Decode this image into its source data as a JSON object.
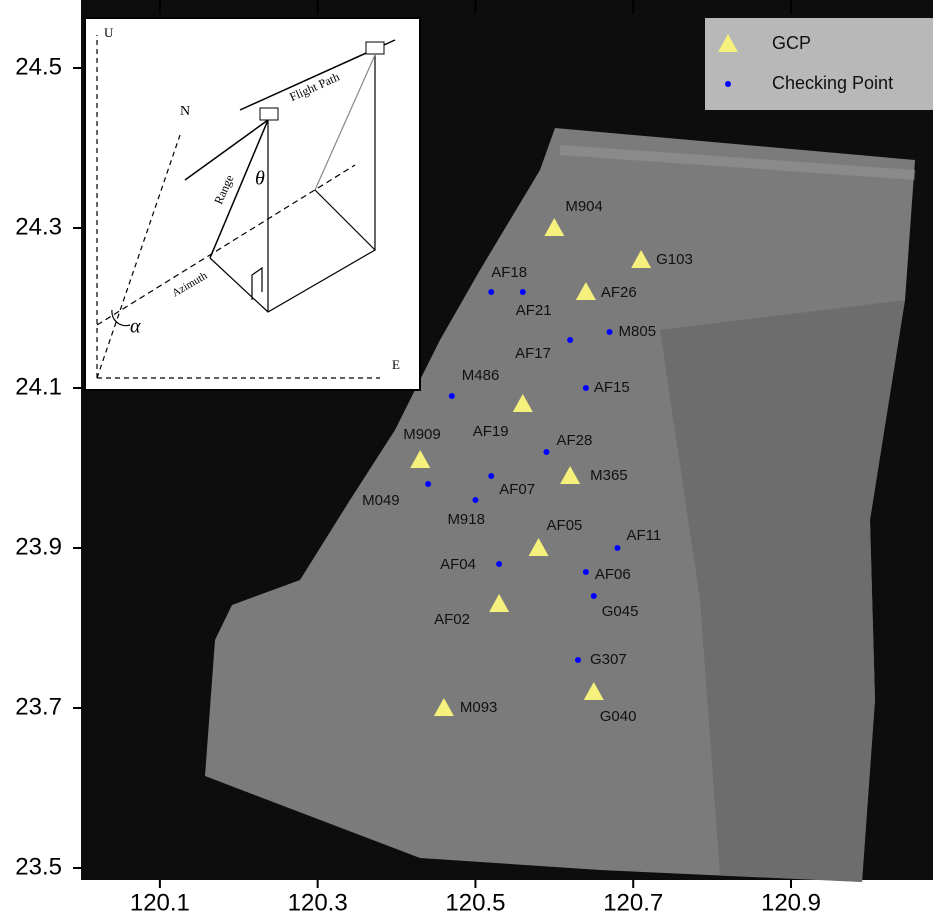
{
  "chart_data": {
    "type": "scatter",
    "xlim": [
      120.0,
      121.08
    ],
    "ylim": [
      23.485,
      24.585
    ],
    "xticks": [
      120.1,
      120.3,
      120.5,
      120.7,
      120.9
    ],
    "yticks": [
      24.5,
      24.3,
      24.1,
      23.9,
      23.7,
      23.5
    ],
    "legend": "top-right",
    "series": [
      {
        "name": "GCP",
        "color": "#f6f07c",
        "marker": "triangle",
        "labels": [
          "M904",
          "G103",
          "AF26",
          "AF19",
          "M909",
          "M365",
          "AF05",
          "AF02",
          "M093",
          "G040"
        ],
        "x": [
          120.6,
          120.71,
          120.64,
          120.56,
          120.43,
          120.62,
          120.58,
          120.53,
          120.46,
          120.65
        ],
        "values": [
          24.3,
          24.26,
          24.22,
          24.08,
          24.01,
          23.99,
          23.9,
          23.83,
          23.7,
          23.72
        ]
      },
      {
        "name": "Checking Point",
        "color": "#0000ff",
        "marker": "circle",
        "labels": [
          "AF18",
          "AF21",
          "M805",
          "AF17",
          "M486",
          "AF15",
          "AF28",
          "AF07",
          "M049",
          "M918",
          "AF11",
          "AF04",
          "AF06",
          "G045",
          "G307"
        ],
        "x": [
          120.52,
          120.56,
          120.67,
          120.62,
          120.47,
          120.64,
          120.59,
          120.52,
          120.44,
          120.5,
          120.68,
          120.53,
          120.64,
          120.65,
          120.63
        ],
        "values": [
          24.22,
          24.22,
          24.17,
          24.16,
          24.09,
          24.1,
          24.02,
          23.99,
          23.98,
          23.96,
          23.9,
          23.88,
          23.87,
          23.84,
          23.76
        ]
      }
    ],
    "inset_labels": {
      "up": "U",
      "north": "N",
      "east": "E",
      "flight_path": "Flight Path",
      "range": "Range",
      "azimuth": "Azimuth",
      "look_angle": "θ",
      "heading": "α"
    }
  }
}
